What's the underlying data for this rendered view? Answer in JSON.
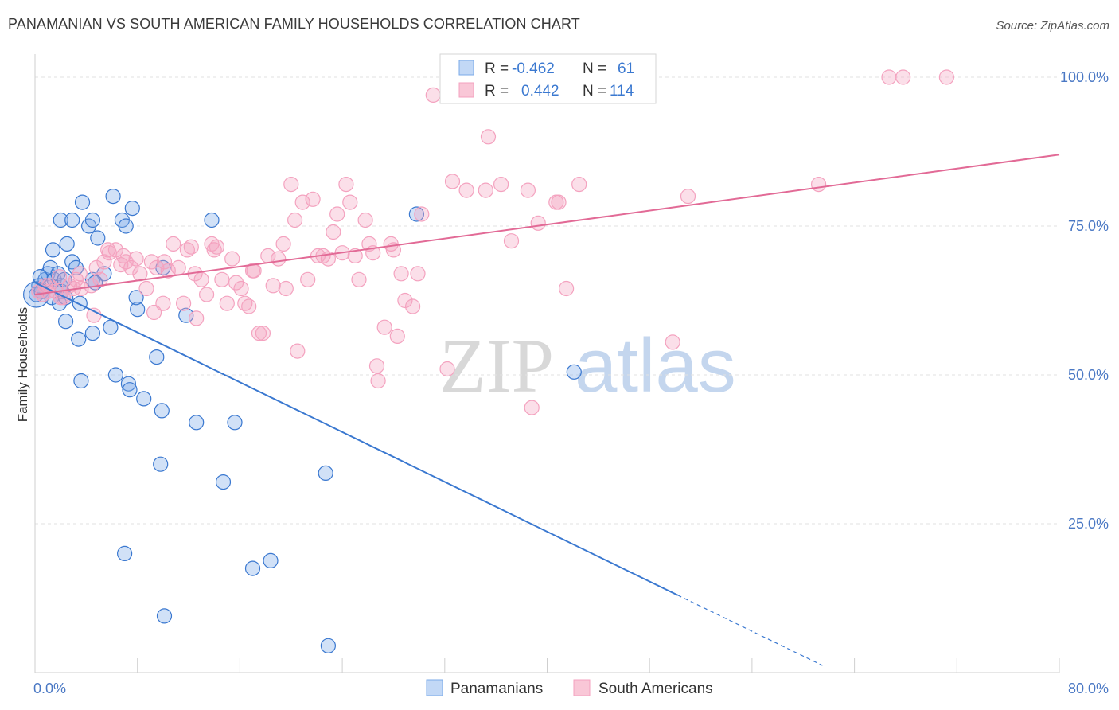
{
  "title": "PANAMANIAN VS SOUTH AMERICAN FAMILY HOUSEHOLDS CORRELATION CHART",
  "source": "Source: ZipAtlas.com",
  "watermark": {
    "zip": "ZIP",
    "atlas": "atlas"
  },
  "chart_data": {
    "type": "scatter",
    "title": "PANAMANIAN VS SOUTH AMERICAN FAMILY HOUSEHOLDS CORRELATION CHART",
    "xlabel": "",
    "ylabel": "Family Households",
    "xlim": [
      0,
      80
    ],
    "ylim": [
      0,
      100
    ],
    "x_tick_labels": [
      {
        "value": 0,
        "label": "0.0%"
      },
      {
        "value": 80,
        "label": "80.0%"
      }
    ],
    "y_tick_labels": [
      {
        "value": 25,
        "label": "25.0%"
      },
      {
        "value": 50,
        "label": "50.0%"
      },
      {
        "value": 75,
        "label": "75.0%"
      },
      {
        "value": 100,
        "label": "100.0%"
      }
    ],
    "legend": {
      "position": "top-center",
      "entries": [
        {
          "r_label": "R =",
          "r_value": "-0.462",
          "n_label": "N =",
          "n_value": "61"
        },
        {
          "r_label": "R =",
          "r_value": "0.442",
          "n_label": "N =",
          "n_value": "114"
        }
      ]
    },
    "bottom_legend": [
      "Panamanians",
      "South Americans"
    ],
    "series": [
      {
        "name": "Panamanians",
        "color": "#7aaae8",
        "line_color": "#3a78d0",
        "trend": {
          "x0": 0,
          "y0": 65.5,
          "x1": 50.2,
          "y1": 13.0,
          "dash_to_x": 61.5,
          "dash_to_y": 1.2
        },
        "points": [
          [
            0.1,
            63.5
          ],
          [
            0.3,
            65
          ],
          [
            0.5,
            64
          ],
          [
            0.8,
            66
          ],
          [
            1,
            67
          ],
          [
            1.2,
            68
          ],
          [
            1.5,
            66
          ],
          [
            1.3,
            63
          ],
          [
            1.8,
            67
          ],
          [
            2,
            65
          ],
          [
            2.1,
            64
          ],
          [
            2.3,
            66
          ],
          [
            1.9,
            62
          ],
          [
            2.4,
            63
          ],
          [
            1.4,
            71
          ],
          [
            2.5,
            72
          ],
          [
            2.9,
            69
          ],
          [
            3.2,
            68
          ],
          [
            4.2,
            75
          ],
          [
            4.9,
            73
          ],
          [
            3.7,
            79
          ],
          [
            6.1,
            80
          ],
          [
            7.6,
            78
          ],
          [
            6.8,
            76
          ],
          [
            7.1,
            75
          ],
          [
            4.5,
            76
          ],
          [
            2,
            76
          ],
          [
            2.9,
            76
          ],
          [
            13.8,
            76
          ],
          [
            10,
            68
          ],
          [
            2.4,
            59
          ],
          [
            3.5,
            62
          ],
          [
            4.5,
            57
          ],
          [
            5.9,
            58
          ],
          [
            8,
            61
          ],
          [
            11.8,
            60
          ],
          [
            7.9,
            63
          ],
          [
            4.5,
            66
          ],
          [
            5.4,
            67
          ],
          [
            4.7,
            65.5
          ],
          [
            3.4,
            56
          ],
          [
            3.6,
            49
          ],
          [
            6.3,
            50
          ],
          [
            7.3,
            48.5
          ],
          [
            7.4,
            47.5
          ],
          [
            8.5,
            46
          ],
          [
            9.5,
            53
          ],
          [
            9.9,
            44
          ],
          [
            12.6,
            42
          ],
          [
            15.6,
            42
          ],
          [
            9.8,
            35
          ],
          [
            14.7,
            32
          ],
          [
            22.7,
            33.5
          ],
          [
            7,
            20
          ],
          [
            18.4,
            18.8
          ],
          [
            17,
            17.5
          ],
          [
            10.1,
            9.5
          ],
          [
            22.9,
            4.5
          ],
          [
            29.8,
            77
          ],
          [
            42.1,
            50.5
          ],
          [
            0.4,
            66.5
          ]
        ]
      },
      {
        "name": "South Americans",
        "color": "#f4a2bf",
        "line_color": "#e26a96",
        "trend": {
          "x0": 0,
          "y0": 63.5,
          "x1": 80,
          "y1": 87
        },
        "points": [
          [
            0.3,
            64
          ],
          [
            0.6,
            63.5
          ],
          [
            1.1,
            65
          ],
          [
            1.6,
            64
          ],
          [
            2.2,
            63
          ],
          [
            2.7,
            65
          ],
          [
            3.2,
            66
          ],
          [
            3.6,
            64.5
          ],
          [
            4.4,
            65
          ],
          [
            4.8,
            68
          ],
          [
            5.1,
            66
          ],
          [
            5.4,
            69
          ],
          [
            5.8,
            70.5
          ],
          [
            6.3,
            71
          ],
          [
            6.7,
            68.5
          ],
          [
            7.1,
            69
          ],
          [
            7.5,
            68
          ],
          [
            7.9,
            69.5
          ],
          [
            8.2,
            67
          ],
          [
            8.7,
            64.5
          ],
          [
            9.1,
            69
          ],
          [
            9.5,
            68
          ],
          [
            10.1,
            69
          ],
          [
            10.4,
            67.5
          ],
          [
            10.8,
            72
          ],
          [
            11.2,
            68
          ],
          [
            11.6,
            62
          ],
          [
            11.9,
            71
          ],
          [
            12.2,
            71.5
          ],
          [
            12.6,
            59.5
          ],
          [
            13,
            66
          ],
          [
            13.4,
            63.5
          ],
          [
            13.8,
            72
          ],
          [
            14.2,
            71.5
          ],
          [
            14.6,
            66
          ],
          [
            15,
            62
          ],
          [
            15.4,
            69.5
          ],
          [
            15.7,
            65.5
          ],
          [
            16.1,
            64.5
          ],
          [
            16.4,
            62
          ],
          [
            16.7,
            61.5
          ],
          [
            17.1,
            67.5
          ],
          [
            17.5,
            57
          ],
          [
            17.8,
            57
          ],
          [
            18.2,
            70
          ],
          [
            18.6,
            65
          ],
          [
            19,
            69.5
          ],
          [
            19.4,
            72
          ],
          [
            19.6,
            64.5
          ],
          [
            20,
            82
          ],
          [
            20.3,
            76
          ],
          [
            20.5,
            54
          ],
          [
            20.9,
            79
          ],
          [
            21.3,
            66
          ],
          [
            21.7,
            79.5
          ],
          [
            22.1,
            70
          ],
          [
            22.5,
            70
          ],
          [
            22.9,
            69.5
          ],
          [
            23.3,
            74
          ],
          [
            23.6,
            77
          ],
          [
            24,
            70.5
          ],
          [
            24.3,
            82
          ],
          [
            24.6,
            79
          ],
          [
            25,
            70
          ],
          [
            25.3,
            66
          ],
          [
            25.8,
            76
          ],
          [
            26.1,
            72
          ],
          [
            26.4,
            70.5
          ],
          [
            26.7,
            51.5
          ],
          [
            26.8,
            49
          ],
          [
            27.3,
            58
          ],
          [
            27.8,
            72
          ],
          [
            28.3,
            56.5
          ],
          [
            28.6,
            67
          ],
          [
            28.9,
            62.5
          ],
          [
            29.5,
            61.5
          ],
          [
            29.9,
            67
          ],
          [
            30.2,
            77
          ],
          [
            31.1,
            97
          ],
          [
            32.2,
            51
          ],
          [
            32.6,
            82.5
          ],
          [
            33.7,
            81
          ],
          [
            35.2,
            81
          ],
          [
            35.4,
            90
          ],
          [
            36.4,
            82
          ],
          [
            37.2,
            72.5
          ],
          [
            38.5,
            81
          ],
          [
            38.8,
            44.5
          ],
          [
            39.3,
            75.5
          ],
          [
            40.7,
            79
          ],
          [
            40.9,
            79
          ],
          [
            41.5,
            64.5
          ],
          [
            42.5,
            82
          ],
          [
            49.8,
            55.5
          ],
          [
            51,
            80
          ],
          [
            61.2,
            82
          ],
          [
            66.7,
            100
          ],
          [
            67.8,
            100
          ],
          [
            71.2,
            100
          ],
          [
            1,
            64
          ],
          [
            2,
            63
          ],
          [
            3.5,
            67
          ],
          [
            4.6,
            60
          ],
          [
            5.7,
            71
          ],
          [
            6.9,
            70
          ],
          [
            0.8,
            65
          ],
          [
            1.9,
            66.5
          ],
          [
            3,
            64.5
          ],
          [
            12.5,
            67
          ],
          [
            17,
            67.5
          ],
          [
            9.3,
            60.5
          ],
          [
            10,
            62
          ],
          [
            14,
            71
          ],
          [
            28,
            71
          ]
        ]
      }
    ]
  }
}
